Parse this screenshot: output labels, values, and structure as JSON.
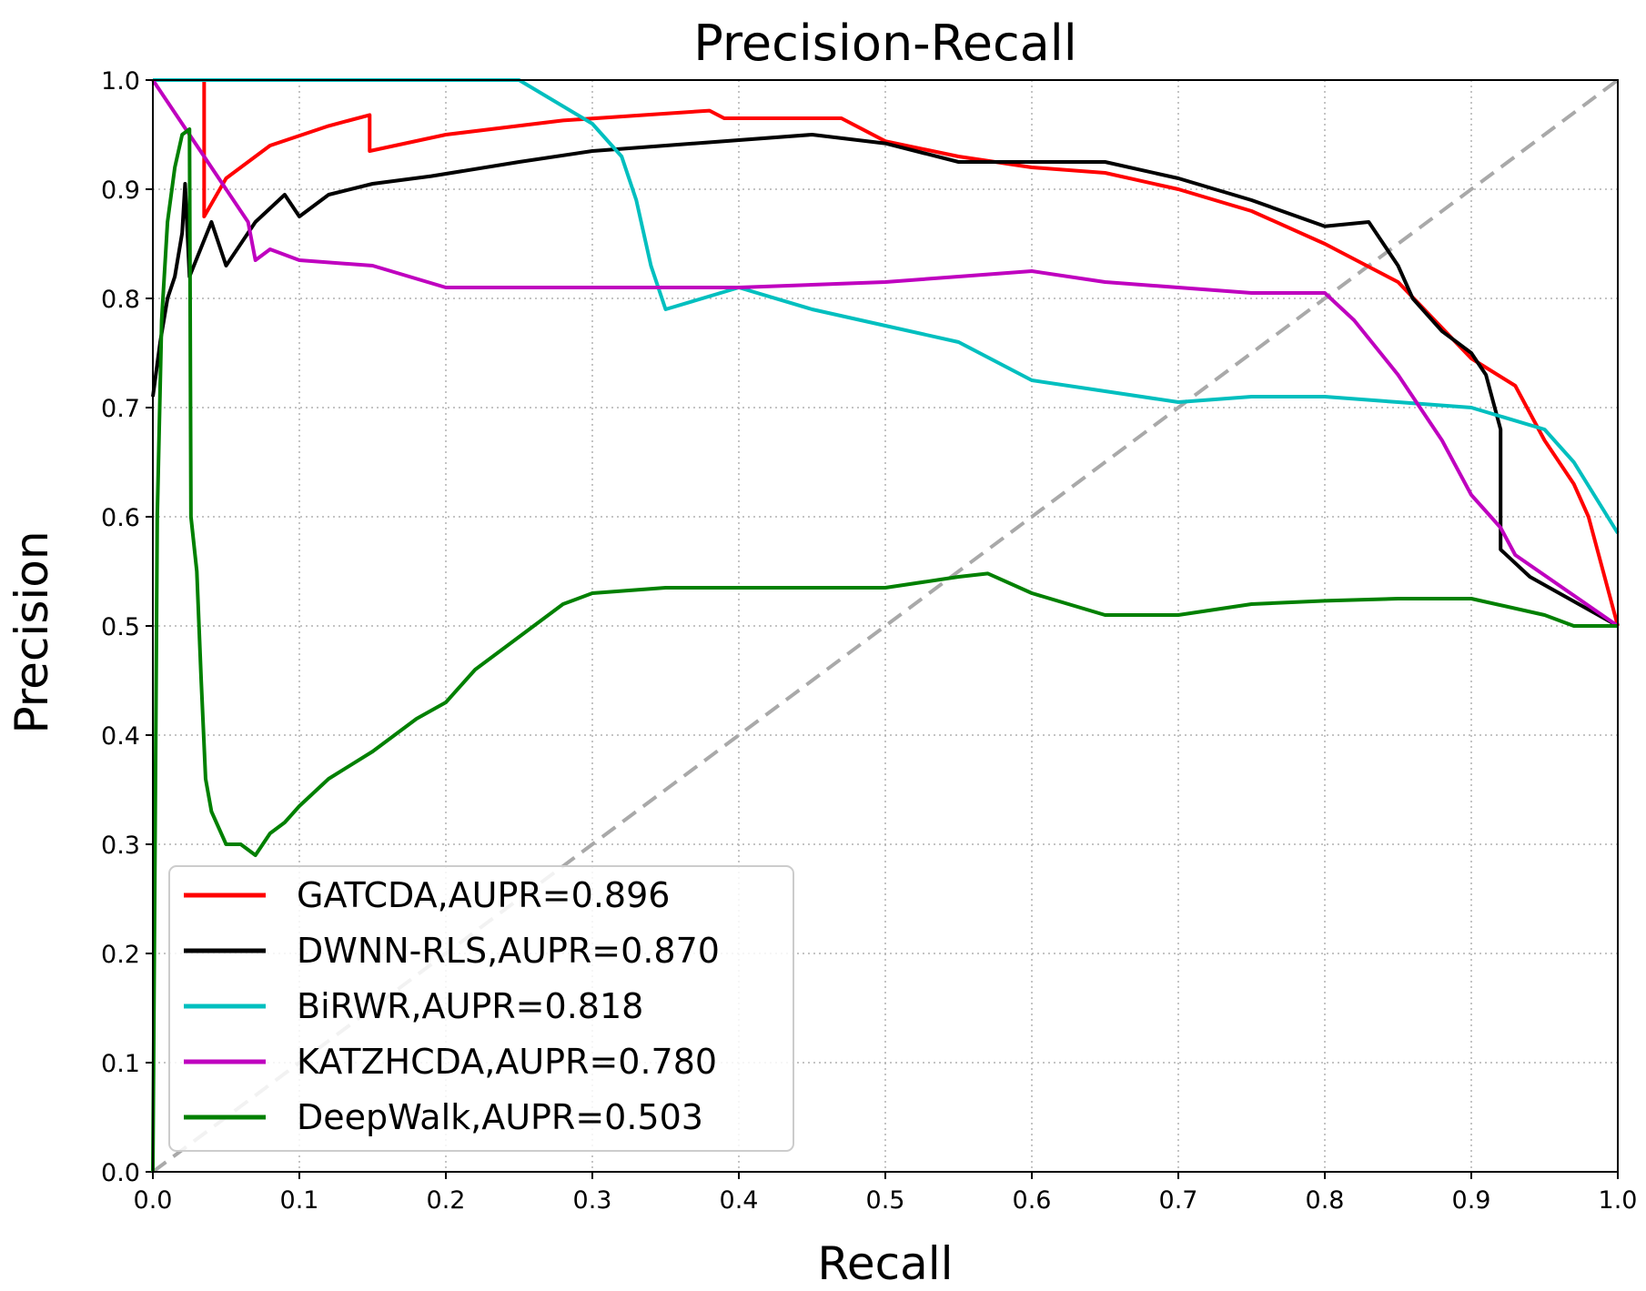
{
  "chart_data": {
    "type": "line",
    "title": "Precision-Recall",
    "xlabel": "Recall",
    "ylabel": "Precision",
    "xlim": [
      0.0,
      1.0
    ],
    "ylim": [
      0.0,
      1.0
    ],
    "x_ticks": [
      "0.0",
      "0.1",
      "0.2",
      "0.3",
      "0.4",
      "0.5",
      "0.6",
      "0.7",
      "0.8",
      "0.9",
      "1.0"
    ],
    "y_ticks": [
      "0.0",
      "0.1",
      "0.2",
      "0.3",
      "0.4",
      "0.5",
      "0.6",
      "0.7",
      "0.8",
      "0.9",
      "1.0"
    ],
    "grid": true,
    "legend_position": "lower-left",
    "baseline": {
      "style": "dashed",
      "color": "#a9a9a9",
      "points": [
        [
          0,
          0
        ],
        [
          1,
          1
        ]
      ]
    },
    "series": [
      {
        "name": "GATCDA,AUPR=0.896",
        "color": "#ff0000",
        "points": [
          [
            0.035,
            1.0
          ],
          [
            0.035,
            0.875
          ],
          [
            0.05,
            0.91
          ],
          [
            0.08,
            0.94
          ],
          [
            0.12,
            0.958
          ],
          [
            0.148,
            0.968
          ],
          [
            0.148,
            0.935
          ],
          [
            0.2,
            0.95
          ],
          [
            0.28,
            0.963
          ],
          [
            0.38,
            0.972
          ],
          [
            0.39,
            0.965
          ],
          [
            0.47,
            0.965
          ],
          [
            0.5,
            0.944
          ],
          [
            0.55,
            0.93
          ],
          [
            0.6,
            0.92
          ],
          [
            0.65,
            0.915
          ],
          [
            0.7,
            0.9
          ],
          [
            0.75,
            0.88
          ],
          [
            0.8,
            0.85
          ],
          [
            0.85,
            0.815
          ],
          [
            0.9,
            0.745
          ],
          [
            0.93,
            0.72
          ],
          [
            0.95,
            0.67
          ],
          [
            0.97,
            0.63
          ],
          [
            0.98,
            0.6
          ],
          [
            0.99,
            0.55
          ],
          [
            1.0,
            0.5
          ]
        ]
      },
      {
        "name": "DWNN-RLS,AUPR=0.870",
        "color": "#000000",
        "points": [
          [
            0.0,
            0.71
          ],
          [
            0.005,
            0.76
          ],
          [
            0.01,
            0.8
          ],
          [
            0.015,
            0.82
          ],
          [
            0.02,
            0.86
          ],
          [
            0.022,
            0.905
          ],
          [
            0.025,
            0.82
          ],
          [
            0.04,
            0.87
          ],
          [
            0.05,
            0.83
          ],
          [
            0.07,
            0.87
          ],
          [
            0.09,
            0.895
          ],
          [
            0.1,
            0.875
          ],
          [
            0.12,
            0.895
          ],
          [
            0.15,
            0.905
          ],
          [
            0.19,
            0.912
          ],
          [
            0.25,
            0.925
          ],
          [
            0.3,
            0.935
          ],
          [
            0.35,
            0.94
          ],
          [
            0.45,
            0.95
          ],
          [
            0.5,
            0.942
          ],
          [
            0.55,
            0.925
          ],
          [
            0.6,
            0.925
          ],
          [
            0.65,
            0.925
          ],
          [
            0.7,
            0.91
          ],
          [
            0.75,
            0.89
          ],
          [
            0.8,
            0.866
          ],
          [
            0.83,
            0.87
          ],
          [
            0.85,
            0.83
          ],
          [
            0.86,
            0.8
          ],
          [
            0.88,
            0.77
          ],
          [
            0.9,
            0.75
          ],
          [
            0.91,
            0.73
          ],
          [
            0.92,
            0.68
          ],
          [
            0.92,
            0.57
          ],
          [
            0.94,
            0.545
          ],
          [
            0.96,
            0.53
          ],
          [
            1.0,
            0.5
          ]
        ]
      },
      {
        "name": "BiRWR,AUPR=0.818",
        "color": "#00bfbf",
        "points": [
          [
            0.0,
            1.0
          ],
          [
            0.25,
            1.0
          ],
          [
            0.3,
            0.96
          ],
          [
            0.32,
            0.93
          ],
          [
            0.33,
            0.89
          ],
          [
            0.34,
            0.83
          ],
          [
            0.35,
            0.79
          ],
          [
            0.4,
            0.81
          ],
          [
            0.45,
            0.79
          ],
          [
            0.5,
            0.775
          ],
          [
            0.55,
            0.76
          ],
          [
            0.6,
            0.725
          ],
          [
            0.65,
            0.715
          ],
          [
            0.7,
            0.705
          ],
          [
            0.75,
            0.71
          ],
          [
            0.8,
            0.71
          ],
          [
            0.85,
            0.705
          ],
          [
            0.9,
            0.7
          ],
          [
            0.95,
            0.68
          ],
          [
            0.97,
            0.65
          ],
          [
            1.0,
            0.585
          ]
        ]
      },
      {
        "name": "KATZHCDA,AUPR=0.780",
        "color": "#bf00bf",
        "points": [
          [
            0.0,
            1.0
          ],
          [
            0.05,
            0.9
          ],
          [
            0.065,
            0.87
          ],
          [
            0.07,
            0.835
          ],
          [
            0.08,
            0.845
          ],
          [
            0.1,
            0.835
          ],
          [
            0.15,
            0.83
          ],
          [
            0.2,
            0.81
          ],
          [
            0.25,
            0.81
          ],
          [
            0.3,
            0.81
          ],
          [
            0.4,
            0.81
          ],
          [
            0.5,
            0.815
          ],
          [
            0.55,
            0.82
          ],
          [
            0.6,
            0.825
          ],
          [
            0.65,
            0.815
          ],
          [
            0.7,
            0.81
          ],
          [
            0.75,
            0.805
          ],
          [
            0.8,
            0.805
          ],
          [
            0.82,
            0.78
          ],
          [
            0.85,
            0.73
          ],
          [
            0.88,
            0.67
          ],
          [
            0.9,
            0.62
          ],
          [
            0.92,
            0.59
          ],
          [
            0.93,
            0.565
          ],
          [
            1.0,
            0.5
          ]
        ]
      },
      {
        "name": "DeepWalk,AUPR=0.503",
        "color": "#008000",
        "points": [
          [
            0.0,
            0.0
          ],
          [
            0.003,
            0.6
          ],
          [
            0.006,
            0.78
          ],
          [
            0.01,
            0.87
          ],
          [
            0.015,
            0.92
          ],
          [
            0.02,
            0.95
          ],
          [
            0.025,
            0.955
          ],
          [
            0.026,
            0.6
          ],
          [
            0.03,
            0.55
          ],
          [
            0.033,
            0.45
          ],
          [
            0.036,
            0.36
          ],
          [
            0.04,
            0.33
          ],
          [
            0.05,
            0.3
          ],
          [
            0.06,
            0.3
          ],
          [
            0.07,
            0.29
          ],
          [
            0.08,
            0.31
          ],
          [
            0.09,
            0.32
          ],
          [
            0.1,
            0.335
          ],
          [
            0.12,
            0.36
          ],
          [
            0.15,
            0.385
          ],
          [
            0.18,
            0.415
          ],
          [
            0.2,
            0.43
          ],
          [
            0.22,
            0.46
          ],
          [
            0.25,
            0.49
          ],
          [
            0.28,
            0.52
          ],
          [
            0.3,
            0.53
          ],
          [
            0.35,
            0.535
          ],
          [
            0.4,
            0.535
          ],
          [
            0.45,
            0.535
          ],
          [
            0.5,
            0.535
          ],
          [
            0.55,
            0.545
          ],
          [
            0.57,
            0.548
          ],
          [
            0.6,
            0.53
          ],
          [
            0.65,
            0.51
          ],
          [
            0.7,
            0.51
          ],
          [
            0.75,
            0.52
          ],
          [
            0.8,
            0.523
          ],
          [
            0.85,
            0.525
          ],
          [
            0.9,
            0.525
          ],
          [
            0.95,
            0.51
          ],
          [
            0.97,
            0.5
          ],
          [
            1.0,
            0.5
          ]
        ]
      }
    ]
  }
}
